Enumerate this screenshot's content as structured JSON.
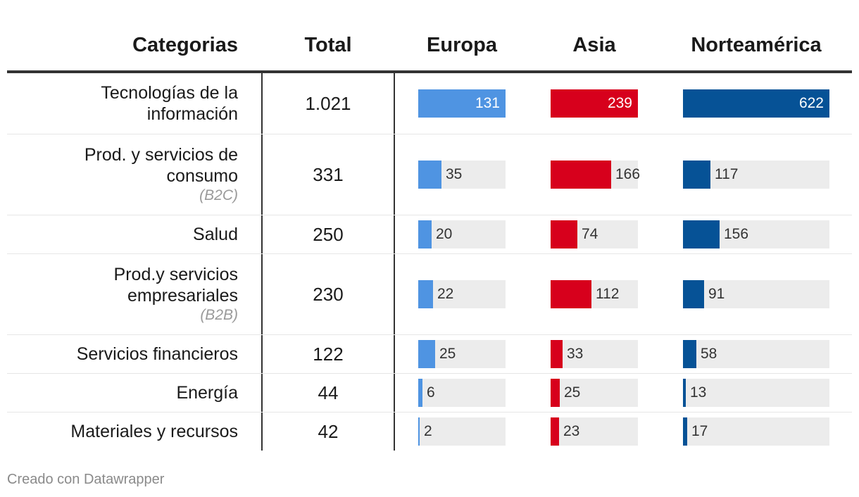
{
  "header": {
    "categorias": "Categorias",
    "total": "Total",
    "europa": "Europa",
    "asia": "Asia",
    "norteamerica": "Norteamérica"
  },
  "colors": {
    "europa": "#4f94e2",
    "asia": "#d7001c",
    "norteamerica": "#065296",
    "track": "#ececec"
  },
  "chart_data": {
    "type": "table",
    "columns": [
      "Categorias",
      "Total",
      "Europa",
      "Asia",
      "Norteamérica"
    ],
    "series_max": {
      "europa": 131,
      "asia": 239,
      "norteamerica": 622
    },
    "rows": [
      {
        "lines": [
          "Tecnologías de la",
          "información"
        ],
        "sub": "",
        "total": "1.021",
        "europa": 131,
        "asia": 239,
        "norteamerica": 622
      },
      {
        "lines": [
          "Prod. y servicios de",
          "consumo"
        ],
        "sub": "(B2C)",
        "total": "331",
        "europa": 35,
        "asia": 166,
        "norteamerica": 117
      },
      {
        "lines": [
          "Salud"
        ],
        "sub": "",
        "total": "250",
        "europa": 20,
        "asia": 74,
        "norteamerica": 156
      },
      {
        "lines": [
          "Prod.y servicios",
          "empresariales"
        ],
        "sub": "(B2B)",
        "total": "230",
        "europa": 22,
        "asia": 112,
        "norteamerica": 91
      },
      {
        "lines": [
          "Servicios financieros"
        ],
        "sub": "",
        "total": "122",
        "europa": 25,
        "asia": 33,
        "norteamerica": 58
      },
      {
        "lines": [
          "Energía"
        ],
        "sub": "",
        "total": "44",
        "europa": 6,
        "asia": 25,
        "norteamerica": 13
      },
      {
        "lines": [
          "Materiales y recursos"
        ],
        "sub": "",
        "total": "42",
        "europa": 2,
        "asia": 23,
        "norteamerica": 17
      }
    ]
  },
  "footer": {
    "credit": "Creado con Datawrapper"
  }
}
